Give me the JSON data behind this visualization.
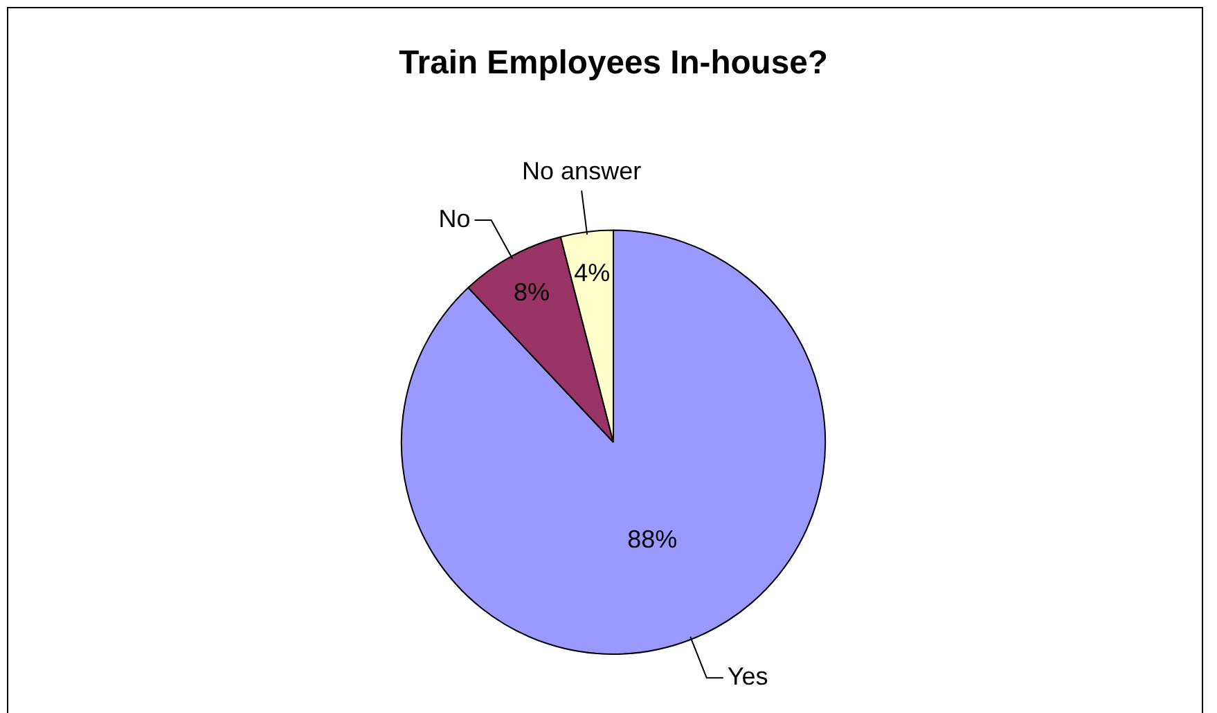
{
  "chart_data": {
    "type": "pie",
    "title": "Train Employees In-house?",
    "categories": [
      "Yes",
      "No",
      "No answer"
    ],
    "values": [
      88,
      8,
      4
    ],
    "colors": [
      "#9999ff",
      "#993366",
      "#ffffcc"
    ],
    "value_labels": [
      "88%",
      "8%",
      "4%"
    ],
    "legend": false
  }
}
